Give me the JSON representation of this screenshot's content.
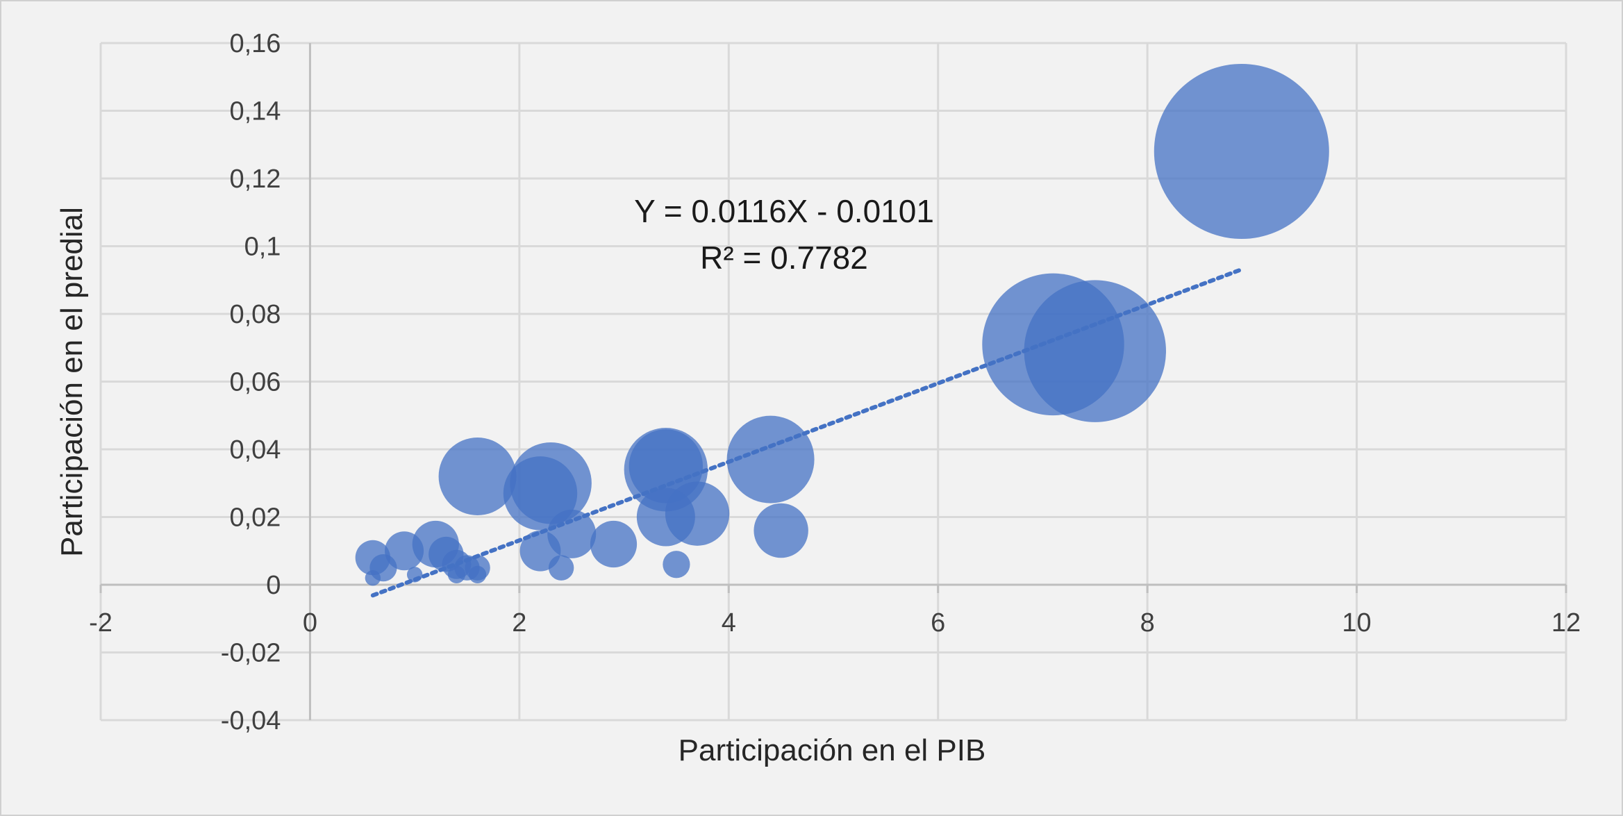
{
  "chart_data": {
    "type": "scatter",
    "subtype": "bubble",
    "title": "",
    "xlabel": "Participación en el PIB",
    "ylabel": "Participación en el predial",
    "xlim": [
      -2,
      12
    ],
    "ylim": [
      -0.04,
      0.16
    ],
    "x_ticks": [
      -2,
      0,
      2,
      4,
      6,
      8,
      10,
      12
    ],
    "x_tick_labels": [
      "-2",
      "0",
      "2",
      "4",
      "6",
      "8",
      "10",
      "12"
    ],
    "y_ticks": [
      -0.04,
      -0.02,
      0,
      0.02,
      0.04,
      0.06,
      0.08,
      0.1,
      0.12,
      0.14,
      0.16
    ],
    "y_tick_labels": [
      "-0,04",
      "-0,02",
      "0",
      "0,02",
      "0,04",
      "0,06",
      "0,08",
      "0,1",
      "0,12",
      "0,14",
      "0,16"
    ],
    "grid": true,
    "legend": "none",
    "series": [
      {
        "color": "#4472c4",
        "opacity": 0.75,
        "points": [
          {
            "x": 8.9,
            "y": 0.128,
            "size": 9.0
          },
          {
            "x": 7.1,
            "y": 0.071,
            "size": 7.3
          },
          {
            "x": 7.5,
            "y": 0.069,
            "size": 7.3
          },
          {
            "x": 4.4,
            "y": 0.037,
            "size": 4.5
          },
          {
            "x": 3.4,
            "y": 0.034,
            "size": 4.3
          },
          {
            "x": 3.4,
            "y": 0.035,
            "size": 3.8
          },
          {
            "x": 1.6,
            "y": 0.032,
            "size": 4.0
          },
          {
            "x": 2.3,
            "y": 0.03,
            "size": 4.2
          },
          {
            "x": 2.2,
            "y": 0.027,
            "size": 3.8
          },
          {
            "x": 3.7,
            "y": 0.021,
            "size": 3.3
          },
          {
            "x": 3.4,
            "y": 0.02,
            "size": 3.0
          },
          {
            "x": 4.5,
            "y": 0.016,
            "size": 2.8
          },
          {
            "x": 2.5,
            "y": 0.015,
            "size": 2.5
          },
          {
            "x": 2.9,
            "y": 0.012,
            "size": 2.4
          },
          {
            "x": 1.2,
            "y": 0.012,
            "size": 2.4
          },
          {
            "x": 0.9,
            "y": 0.01,
            "size": 2.0
          },
          {
            "x": 2.2,
            "y": 0.01,
            "size": 2.1
          },
          {
            "x": 1.3,
            "y": 0.009,
            "size": 1.8
          },
          {
            "x": 0.6,
            "y": 0.008,
            "size": 1.8
          },
          {
            "x": 1.4,
            "y": 0.006,
            "size": 1.5
          },
          {
            "x": 0.7,
            "y": 0.005,
            "size": 1.4
          },
          {
            "x": 3.5,
            "y": 0.006,
            "size": 1.4
          },
          {
            "x": 1.6,
            "y": 0.005,
            "size": 1.3
          },
          {
            "x": 1.5,
            "y": 0.005,
            "size": 1.3
          },
          {
            "x": 2.4,
            "y": 0.005,
            "size": 1.3
          },
          {
            "x": 1.4,
            "y": 0.003,
            "size": 0.9
          },
          {
            "x": 1.6,
            "y": 0.003,
            "size": 0.9
          },
          {
            "x": 1.0,
            "y": 0.003,
            "size": 0.8
          },
          {
            "x": 0.6,
            "y": 0.002,
            "size": 0.8
          }
        ]
      }
    ],
    "trendline": {
      "type": "linear",
      "slope": 0.0116,
      "intercept": -0.0101,
      "x_range": [
        0.6,
        8.9
      ],
      "style": "dotted",
      "color": "#4472c4",
      "equation_text": "Y = 0.0116X - 0.0101",
      "r2_text": "R² = 0.7782"
    }
  }
}
